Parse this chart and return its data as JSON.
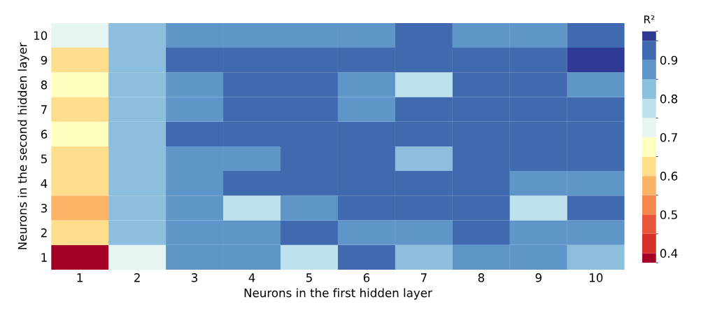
{
  "chart_data": {
    "type": "heatmap",
    "xlabel": "Neurons in the first hidden layer",
    "ylabel": "Neurons in the second hidden layer",
    "clabel": "R²",
    "categories": [
      "1",
      "2",
      "3",
      "4",
      "5",
      "6",
      "7",
      "8",
      "9",
      "10"
    ],
    "y_categories": [
      "10",
      "9",
      "8",
      "7",
      "6",
      "5",
      "4",
      "3",
      "2",
      "1"
    ],
    "cells": [
      [
        0.7,
        0.81,
        0.87,
        0.88,
        0.87,
        0.89,
        0.92,
        0.89,
        0.89,
        0.91
      ],
      [
        0.63,
        0.82,
        0.9,
        0.92,
        0.9,
        0.92,
        0.91,
        0.93,
        0.92,
        0.96
      ],
      [
        0.67,
        0.81,
        0.88,
        0.92,
        0.91,
        0.89,
        0.79,
        0.9,
        0.92,
        0.88
      ],
      [
        0.64,
        0.8,
        0.88,
        0.91,
        0.92,
        0.88,
        0.9,
        0.92,
        0.93,
        0.91
      ],
      [
        0.67,
        0.81,
        0.9,
        0.92,
        0.93,
        0.92,
        0.9,
        0.91,
        0.93,
        0.92
      ],
      [
        0.62,
        0.8,
        0.88,
        0.88,
        0.92,
        0.9,
        0.82,
        0.9,
        0.92,
        0.92
      ],
      [
        0.64,
        0.82,
        0.88,
        0.9,
        0.9,
        0.92,
        0.92,
        0.93,
        0.89,
        0.88
      ],
      [
        0.57,
        0.8,
        0.88,
        0.76,
        0.89,
        0.9,
        0.92,
        0.93,
        0.77,
        0.9
      ],
      [
        0.6,
        0.8,
        0.87,
        0.89,
        0.91,
        0.87,
        0.88,
        0.91,
        0.89,
        0.85
      ],
      [
        0.38,
        0.74,
        0.86,
        0.87,
        0.78,
        0.9,
        0.82,
        0.88,
        0.89,
        0.84
      ]
    ],
    "colors": [
      "#a50026",
      "#d62f27",
      "#e8553a",
      "#f4874e",
      "#fbb466",
      "#fedd8d",
      "#ffffbf",
      "#e6f5f1",
      "#bde2ee",
      "#8cbfdd",
      "#5f95c9",
      "#3f6ab0",
      "#2e3a93"
    ],
    "clim": [
      0.375,
      0.975
    ],
    "cticks": [
      0.4,
      0.5,
      0.6,
      0.7,
      0.8,
      0.9
    ]
  }
}
